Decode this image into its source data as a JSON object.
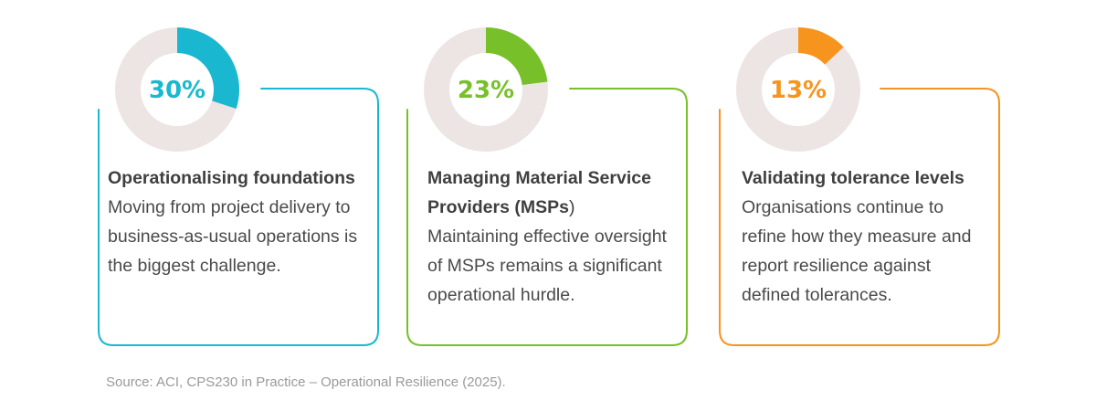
{
  "chart_data": [
    {
      "type": "pie",
      "value": 30,
      "label": "30%",
      "title": "Operationalising foundations",
      "description": "Moving from project delivery to business-as-usual operations is the biggest challenge.",
      "color": "#1ab8d0",
      "track_color": "#ede5e4"
    },
    {
      "type": "pie",
      "value": 23,
      "label": "23%",
      "title_parts": [
        "Managing Material Service Providers (",
        "MSPs",
        ")"
      ],
      "title": "Managing Material Service Providers (MSPs)",
      "description": "Maintaining effective oversight of MSPs remains a significant operational hurdle.",
      "color": "#77c02a",
      "track_color": "#ede5e4"
    },
    {
      "type": "pie",
      "value": 13,
      "label": "13%",
      "title": "Validating tolerance levels",
      "description": "Organisations continue to refine how they measure and report resilience against defined tolerances.",
      "color": "#f7941d",
      "track_color": "#ede5e4"
    }
  ],
  "source": "Source: ACI, CPS230 in Practice – Operational Resilience (2025)."
}
